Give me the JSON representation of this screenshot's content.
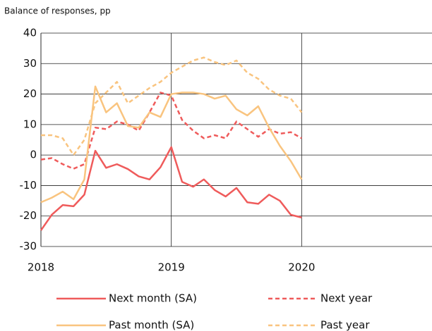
{
  "chart_data": {
    "type": "line",
    "y_label": "Balance of responses, pp",
    "x": [
      2018,
      2018.083,
      2018.167,
      2018.25,
      2018.333,
      2018.417,
      2018.5,
      2018.583,
      2018.667,
      2018.75,
      2018.833,
      2018.917,
      2019,
      2019.083,
      2019.167,
      2019.25,
      2019.333,
      2019.417,
      2019.5,
      2019.583,
      2019.667,
      2019.75,
      2019.833,
      2019.917,
      2020
    ],
    "series": [
      {
        "name": "Next month (SA)",
        "color": "#ef5b5b",
        "dashed": false,
        "values": [
          -24.7,
          -19.6,
          -16.4,
          -16.8,
          -13,
          1.4,
          -4.2,
          -3,
          -4.6,
          -7,
          -8,
          -4,
          2.6,
          -8.8,
          -10.4,
          -8,
          -11.5,
          -13.6,
          -10.8,
          -15.5,
          -16,
          -13,
          -15,
          -19.6,
          -20.5
        ]
      },
      {
        "name": "Next year",
        "color": "#ef5b5b",
        "dashed": true,
        "values": [
          -1.5,
          -1,
          -3,
          -4.5,
          -3,
          9,
          8.5,
          11,
          10,
          8,
          14,
          20.5,
          19.5,
          11.5,
          8,
          5.5,
          6.5,
          5.5,
          11,
          8.5,
          6,
          8.5,
          7,
          7.5,
          5.5
        ]
      },
      {
        "name": "Past month (SA)",
        "color": "#f9c47f",
        "dashed": false,
        "values": [
          -15.5,
          -14,
          -12,
          -14.5,
          -8,
          22.5,
          14,
          17,
          9.5,
          9,
          14,
          12.5,
          20,
          20.5,
          20.5,
          20,
          18.5,
          19.5,
          15,
          13,
          16,
          9,
          3,
          -2,
          -8
        ]
      },
      {
        "name": "Past year",
        "color": "#f9c47f",
        "dashed": true,
        "values": [
          6.5,
          6.5,
          5.5,
          0,
          5,
          17,
          20.5,
          24,
          17,
          19.5,
          22,
          24,
          27,
          29,
          31,
          32,
          30.5,
          29.5,
          31,
          27,
          25,
          21.5,
          19.5,
          18.5,
          14
        ]
      }
    ],
    "xlim": [
      2018,
      2021
    ],
    "xticks": [
      2018,
      2019,
      2020
    ],
    "ylim": [
      -30,
      40
    ],
    "yticks": [
      -30,
      -20,
      -10,
      0,
      10,
      20,
      30,
      40
    ],
    "grid": true
  }
}
